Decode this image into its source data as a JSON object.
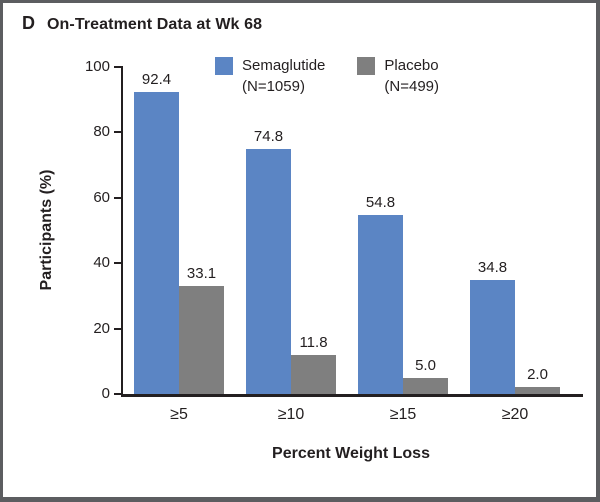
{
  "panel": {
    "label": "D"
  },
  "chart_data": {
    "type": "bar",
    "title": "On-Treatment Data at Wk 68",
    "categories": [
      "≥5",
      "≥10",
      "≥15",
      "≥20"
    ],
    "series": [
      {
        "name": "Semaglutide",
        "n_label": "(N=1059)",
        "color": "#5B85C4",
        "values": [
          92.4,
          74.8,
          54.8,
          34.8
        ]
      },
      {
        "name": "Placebo",
        "n_label": "(N=499)",
        "color": "#7F7F7F",
        "values": [
          33.1,
          11.8,
          5.0,
          2.0
        ]
      }
    ],
    "xlabel": "Percent Weight Loss",
    "ylabel": "Participants (%)",
    "ylim": [
      0,
      100
    ],
    "yticks": [
      0,
      20,
      40,
      60,
      80,
      100
    ],
    "grid": false,
    "legend_position": "top",
    "value_labels_decimals": 1,
    "text_color": "#231f20",
    "axis_color": "#231f20"
  }
}
